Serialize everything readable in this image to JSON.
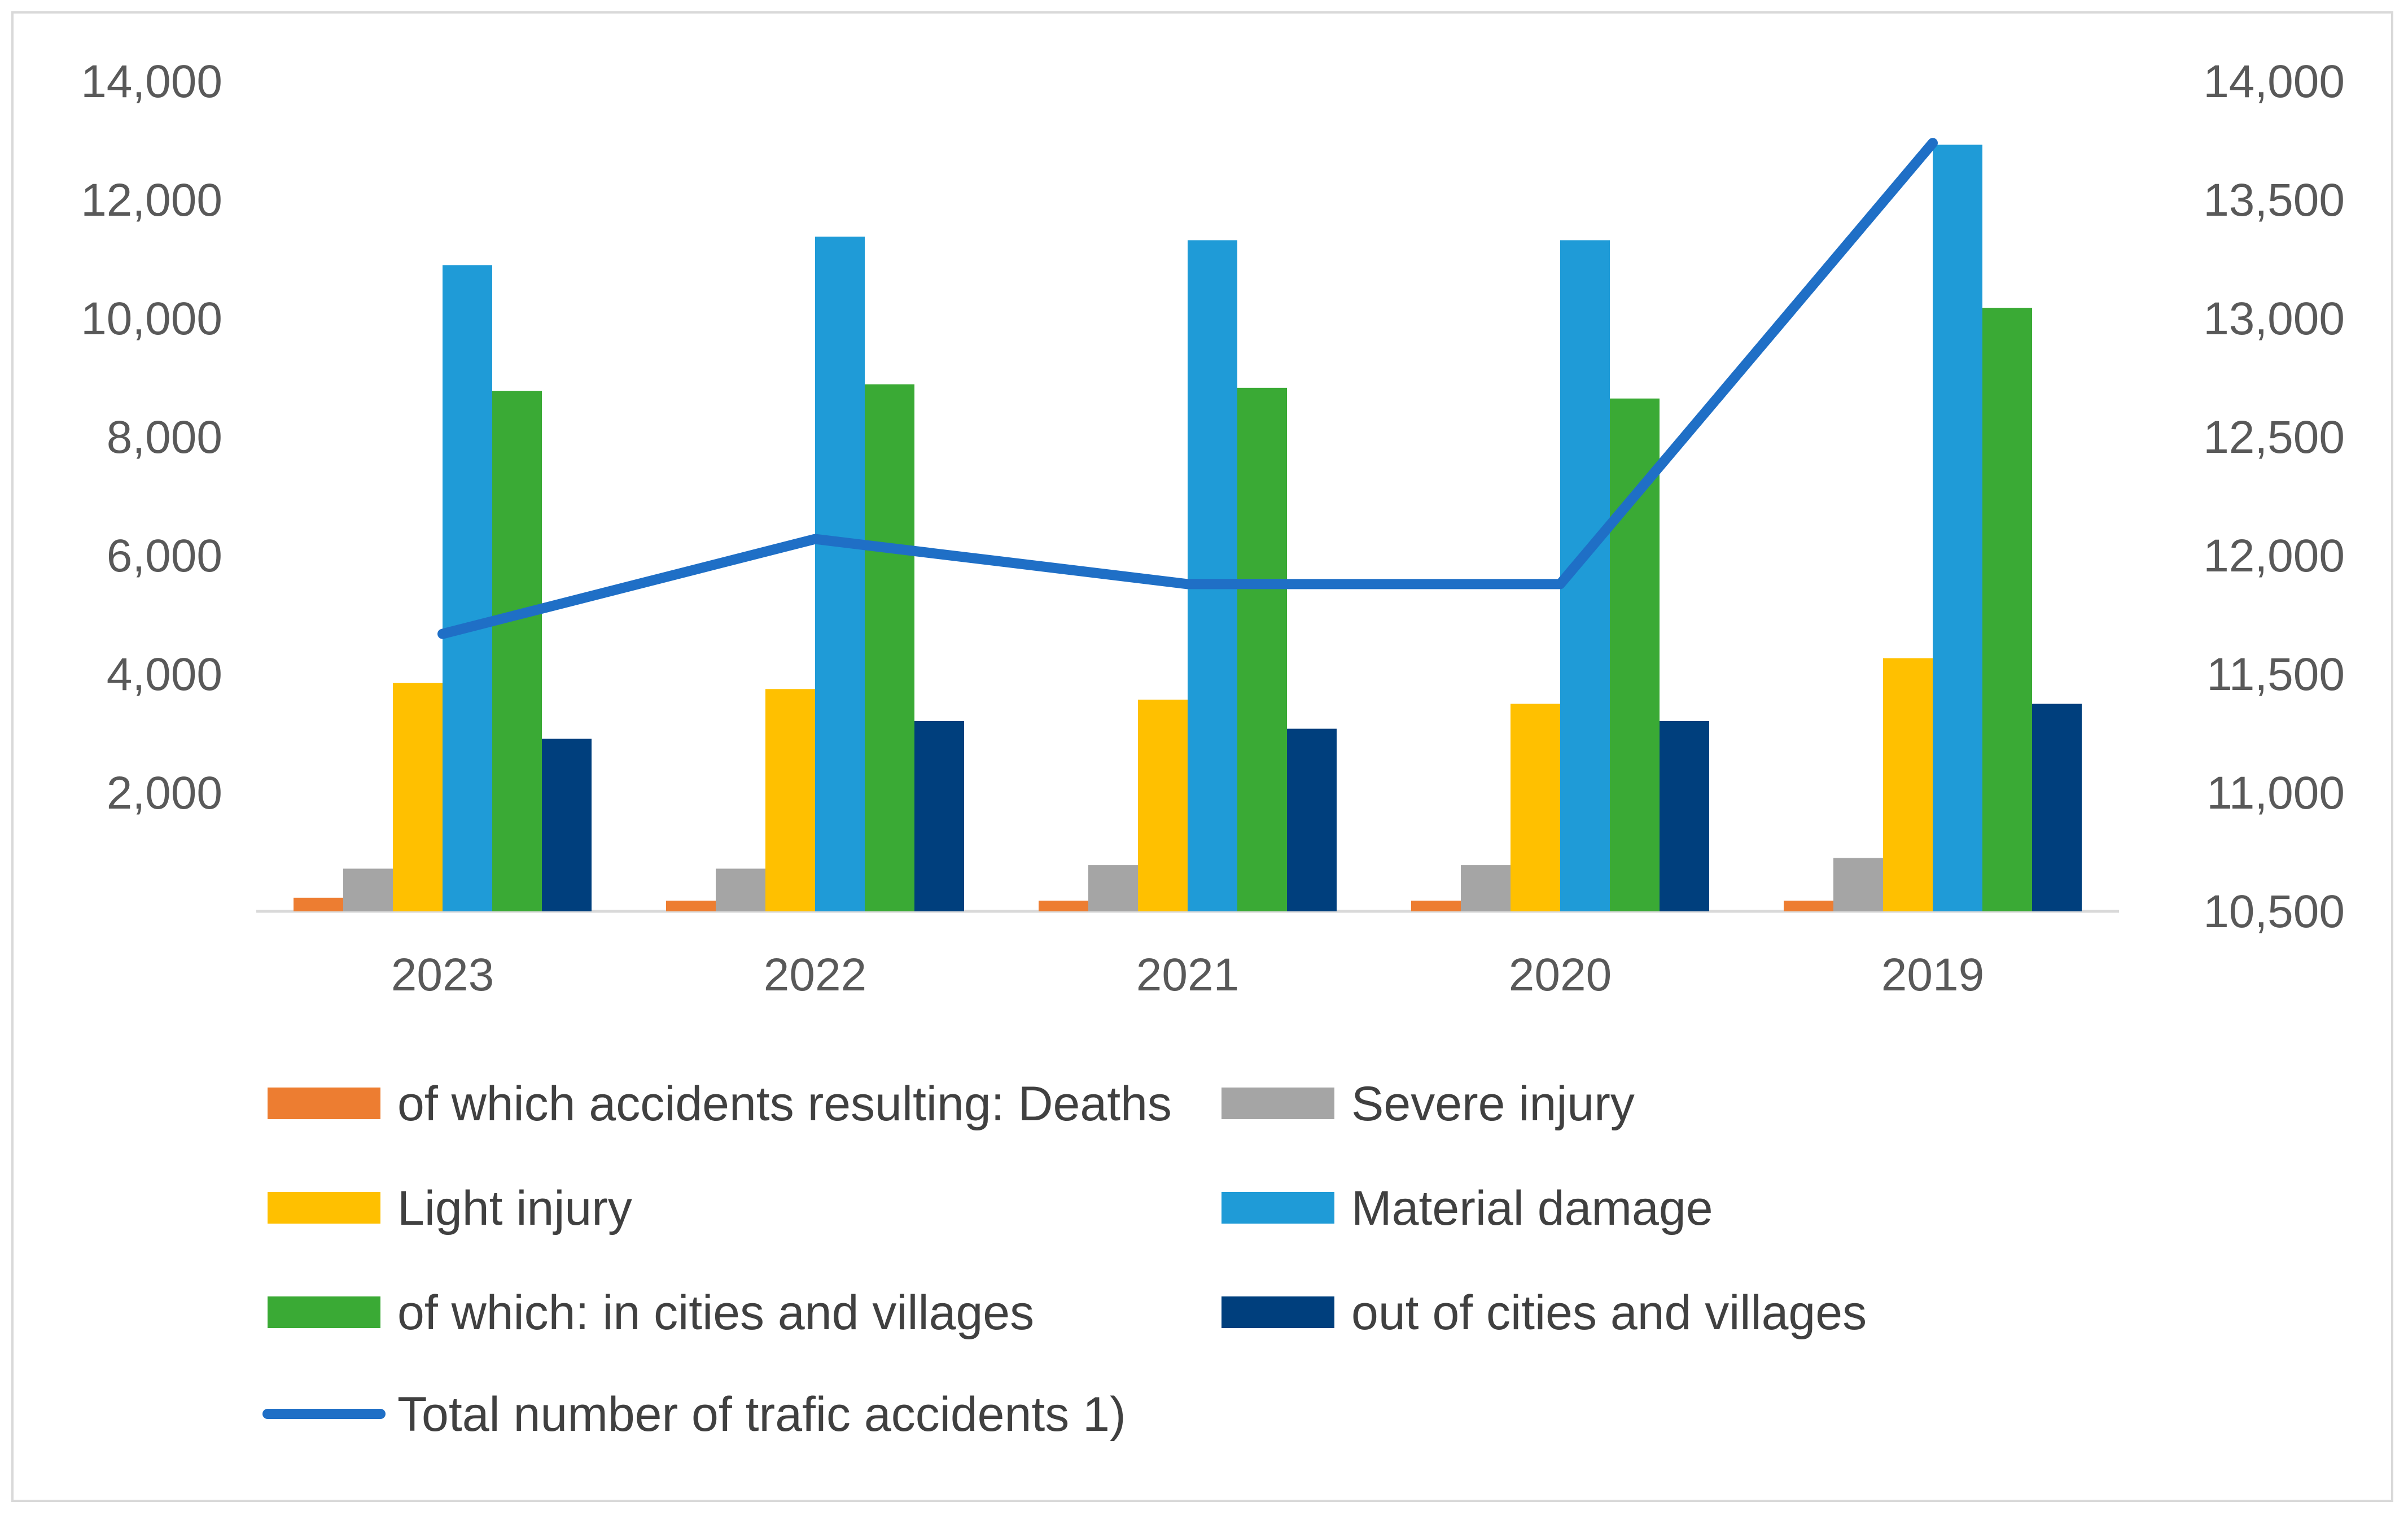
{
  "chart_data": {
    "type": "bar",
    "categories": [
      "2023",
      "2022",
      "2021",
      "2020",
      "2019"
    ],
    "series": [
      {
        "name": "of which accidents resulting: Deaths",
        "axis": "left",
        "color": "#ed7d31",
        "values": [
          230,
          180,
          180,
          180,
          180
        ]
      },
      {
        "name": "Severe injury",
        "axis": "left",
        "color": "#a5a5a5",
        "values": [
          720,
          720,
          780,
          780,
          900
        ]
      },
      {
        "name": "Light injury",
        "axis": "left",
        "color": "#ffc000",
        "values": [
          3850,
          3750,
          3570,
          3500,
          4270
        ]
      },
      {
        "name": "Material damage",
        "axis": "left",
        "color": "#1f9bd7",
        "values": [
          10900,
          11380,
          11320,
          11320,
          12930
        ]
      },
      {
        "name": "of which: in cities and villages",
        "axis": "left",
        "color": "#3aaa35",
        "values": [
          8780,
          8890,
          8830,
          8650,
          10180
        ]
      },
      {
        "name": "out of cities and villages",
        "axis": "left",
        "color": "#003f7d",
        "values": [
          2910,
          3210,
          3080,
          3210,
          3500
        ]
      },
      {
        "name": "Total number of trafic accidents 1)",
        "axis": "right",
        "type": "line",
        "color": "#1f6fc6",
        "values": [
          11670,
          12070,
          11880,
          11880,
          13740
        ]
      }
    ],
    "left_axis": {
      "min": 0,
      "max": 14000,
      "step": 2000,
      "tick_labels": [
        "",
        "2,000",
        "4,000",
        "6,000",
        "8,000",
        "10,000",
        "12,000",
        "14,000"
      ]
    },
    "right_axis": {
      "min": 10500,
      "max": 14000,
      "step": 500,
      "tick_labels": [
        "10,500",
        "11,000",
        "11,500",
        "12,000",
        "12,500",
        "13,000",
        "13,500",
        "14,000"
      ]
    },
    "legend_position": "bottom",
    "grid": false
  }
}
